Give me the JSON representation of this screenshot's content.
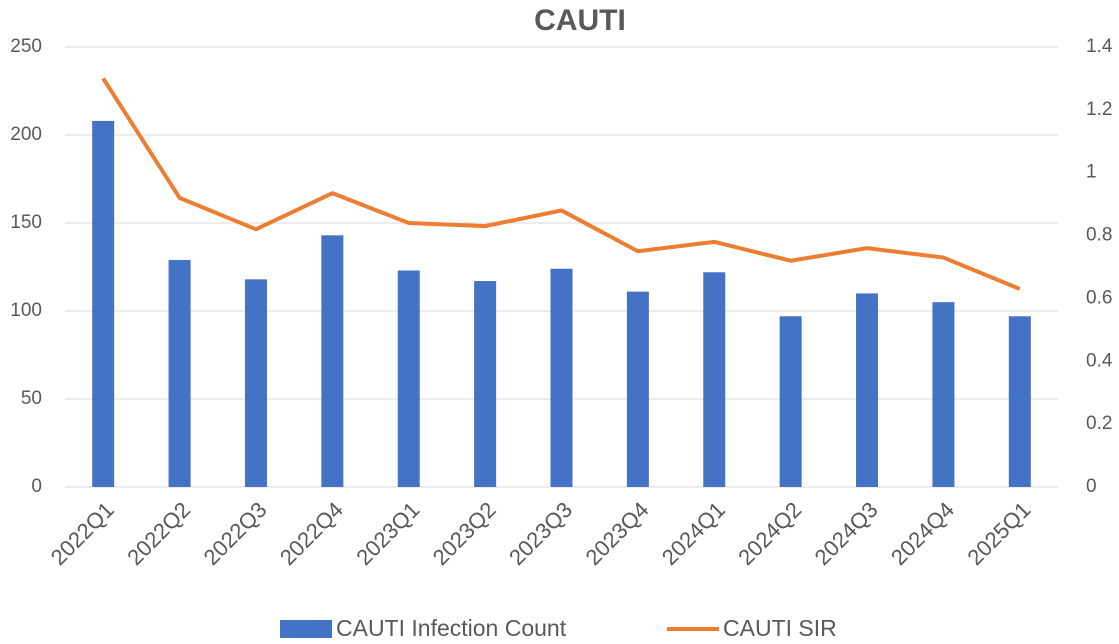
{
  "chart_data": {
    "type": "bar",
    "title": "CAUTI",
    "categories": [
      "2022Q1",
      "2022Q2",
      "2022Q3",
      "2022Q4",
      "2023Q1",
      "2023Q2",
      "2023Q3",
      "2023Q4",
      "2024Q1",
      "2024Q2",
      "2024Q3",
      "2024Q4",
      "2025Q1"
    ],
    "series": [
      {
        "name": "CAUTI Infection Count",
        "type": "bar",
        "color": "#4472c4",
        "values": [
          208,
          129,
          118,
          143,
          123,
          117,
          124,
          111,
          122,
          97,
          110,
          105,
          97
        ]
      },
      {
        "name": "CAUTI SIR",
        "type": "line",
        "axis": "y2",
        "color": "#ed7d31",
        "values": [
          1.3,
          0.92,
          0.82,
          0.935,
          0.84,
          0.83,
          0.88,
          0.75,
          0.78,
          0.72,
          0.76,
          0.73,
          0.63
        ]
      }
    ],
    "ylim": [
      0,
      250
    ],
    "yticks": [
      0,
      50,
      100,
      150,
      200,
      250
    ],
    "y2lim": [
      0,
      1.4
    ],
    "y2ticks": [
      0,
      0.2,
      0.4,
      0.6,
      0.8,
      1,
      1.2,
      1.4
    ],
    "grid": true,
    "legend": "bottom"
  }
}
